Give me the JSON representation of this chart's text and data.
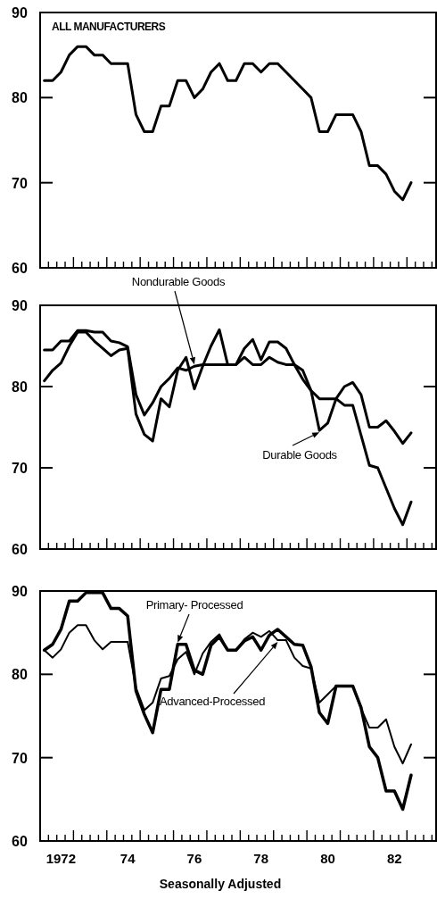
{
  "chart_data": [
    {
      "type": "line",
      "title": "ALL MANUFACTURERS",
      "tick_labels": "y",
      "ylim": [
        60,
        90
      ],
      "yticks": [
        60,
        70,
        80,
        90
      ],
      "categories": [
        null,
        null,
        "1972",
        null,
        null,
        null,
        null,
        null,
        null,
        null,
        "74",
        null,
        null,
        null,
        null,
        null,
        null,
        null,
        "76",
        null,
        null,
        null,
        null,
        null,
        null,
        null,
        "78",
        null,
        null,
        null,
        null,
        null,
        null,
        null,
        "80",
        null,
        null,
        null,
        null,
        null,
        null,
        null,
        "82",
        null,
        null
      ],
      "series": [
        {
          "color": "#000000",
          "values": [
            82,
            82,
            83,
            85,
            86,
            86,
            85,
            85,
            84,
            84,
            84,
            78,
            76,
            76,
            79,
            79,
            82,
            82,
            80,
            81,
            83,
            84,
            82,
            82,
            84,
            84,
            83,
            84,
            84,
            83,
            82,
            81,
            80,
            76,
            76,
            78,
            78,
            78,
            76,
            72,
            72,
            71,
            69,
            68,
            70
          ]
        }
      ]
    },
    {
      "type": "line",
      "tick_labels": "y",
      "ylim": [
        60,
        90
      ],
      "yticks": [
        60,
        70,
        80,
        90
      ],
      "categories": [
        null,
        null,
        "1972",
        null,
        null,
        null,
        null,
        null,
        null,
        null,
        "74",
        null,
        null,
        null,
        null,
        null,
        null,
        null,
        "76",
        null,
        null,
        null,
        null,
        null,
        null,
        null,
        "78",
        null,
        null,
        null,
        null,
        null,
        null,
        null,
        "80",
        null,
        null,
        null,
        null,
        null,
        null,
        null,
        "82",
        null,
        null
      ],
      "series": [
        {
          "name": "Nondurable Goods",
          "color": "#000000",
          "values": [
            84.5,
            84.5,
            85.6,
            85.6,
            86.9,
            86.9,
            86.7,
            86.7,
            85.6,
            85.4,
            84.9,
            79,
            76.5,
            78,
            80,
            81,
            82.3,
            82,
            82.5,
            82.7,
            82.7,
            82.7,
            82.7,
            82.7,
            83.6,
            82.7,
            82.7,
            83.6,
            83,
            82.7,
            82.7,
            82,
            79.5,
            78.5,
            78.5,
            78.5,
            80,
            80.5,
            79,
            75,
            75,
            75.8,
            74.5,
            73,
            74.3
          ]
        },
        {
          "name": "Durable Goods",
          "color": "#000000",
          "values": [
            80.7,
            82,
            82.9,
            85,
            86.7,
            86.7,
            85.6,
            84.7,
            83.8,
            84.5,
            84.7,
            76.6,
            74.1,
            73.3,
            78.5,
            77.5,
            82,
            83.6,
            79.7,
            82.5,
            85,
            87,
            82.7,
            82.7,
            84.7,
            85.8,
            83.3,
            85.5,
            85.5,
            84.7,
            82.7,
            80.9,
            79.5,
            74.6,
            75.5,
            78.5,
            77.7,
            77.7,
            74,
            70.3,
            70,
            67.5,
            65,
            63,
            65.8
          ]
        }
      ]
    },
    {
      "type": "line",
      "xlabel": "Seasonally Adjusted",
      "ylim": [
        60,
        90
      ],
      "yticks": [
        60,
        70,
        80,
        90
      ],
      "categories": [
        null,
        null,
        "1972",
        null,
        null,
        null,
        null,
        null,
        null,
        null,
        "74",
        null,
        null,
        null,
        null,
        null,
        null,
        null,
        "76",
        null,
        null,
        null,
        null,
        null,
        null,
        null,
        "78",
        null,
        null,
        null,
        null,
        null,
        null,
        null,
        "80",
        null,
        null,
        null,
        null,
        null,
        null,
        null,
        "82",
        null,
        null
      ],
      "series": [
        {
          "name": "Primary- Processed",
          "color": "#000000",
          "values": [
            82.9,
            83.6,
            85.4,
            88.8,
            88.8,
            89.8,
            89.8,
            89.8,
            87.9,
            87.9,
            87,
            78,
            75.2,
            73,
            78.2,
            78.2,
            83.6,
            83.6,
            80.5,
            80,
            83.5,
            84.5,
            82.9,
            82.9,
            84,
            84.5,
            82.9,
            84.7,
            85.4,
            84.5,
            83.6,
            83.5,
            80.9,
            75.4,
            74.1,
            78.6,
            78.6,
            78.6,
            76,
            71.3,
            70,
            66,
            66,
            63.8,
            67.9
          ]
        },
        {
          "name": "Advanced-Processed",
          "color": "#000000",
          "values": [
            82.9,
            82,
            83,
            85,
            85.9,
            85.9,
            84.1,
            83,
            83.9,
            83.9,
            83.9,
            78.4,
            75.7,
            76.6,
            79.5,
            79.8,
            81.8,
            82.7,
            80,
            82.5,
            83.9,
            84.8,
            82.9,
            82.9,
            84.2,
            85,
            84.5,
            85.2,
            84.1,
            84.1,
            82,
            81,
            80.7,
            76.6,
            77.6,
            78.6,
            78.6,
            78.6,
            75.9,
            73.6,
            73.6,
            74.6,
            71.3,
            69.3,
            71.6
          ]
        }
      ]
    }
  ]
}
